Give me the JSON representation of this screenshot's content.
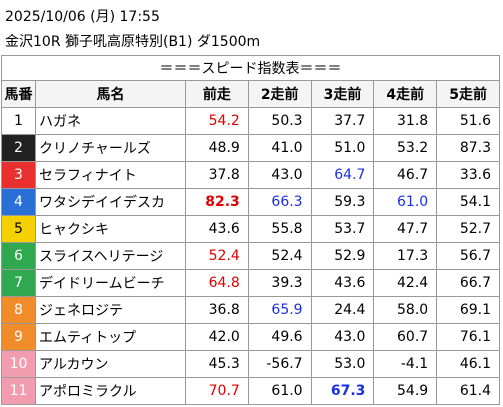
{
  "header": {
    "line1": "2025/10/06 (月) 17:55",
    "line2": "金沢10R 獅子吼高原特別(B1) ダ1500m"
  },
  "table": {
    "title": "＝＝＝スピード指数表＝＝＝",
    "columns": [
      "馬番",
      "馬名",
      "前走",
      "2走前",
      "3走前",
      "4走前",
      "5走前"
    ],
    "frame_colors": [
      {
        "bg": "#ffffff",
        "fg": "#000000"
      },
      {
        "bg": "#222222",
        "fg": "#ffffff"
      },
      {
        "bg": "#e8312f",
        "fg": "#ffffff"
      },
      {
        "bg": "#2a6fd6",
        "fg": "#ffffff"
      },
      {
        "bg": "#f5d000",
        "fg": "#000000"
      },
      {
        "bg": "#2fa84f",
        "fg": "#ffffff"
      },
      {
        "bg": "#2fa84f",
        "fg": "#ffffff"
      },
      {
        "bg": "#f08c2a",
        "fg": "#ffffff"
      },
      {
        "bg": "#f08c2a",
        "fg": "#ffffff"
      },
      {
        "bg": "#f29cb0",
        "fg": "#ffffff"
      },
      {
        "bg": "#f29cb0",
        "fg": "#ffffff"
      }
    ],
    "rows": [
      {
        "num": "1",
        "name": "ハガネ",
        "values": [
          "54.2",
          "50.3",
          "37.7",
          "31.8",
          "51.6"
        ],
        "styles": [
          "red",
          "normal",
          "normal",
          "normal",
          "normal"
        ]
      },
      {
        "num": "2",
        "name": "クリノチャールズ",
        "values": [
          "48.9",
          "41.0",
          "51.0",
          "53.2",
          "87.3"
        ],
        "styles": [
          "normal",
          "normal",
          "normal",
          "normal",
          "normal"
        ]
      },
      {
        "num": "3",
        "name": "セラフィナイト",
        "values": [
          "37.8",
          "43.0",
          "64.7",
          "46.7",
          "33.6"
        ],
        "styles": [
          "normal",
          "normal",
          "blue",
          "normal",
          "normal"
        ]
      },
      {
        "num": "4",
        "name": "ワタシデイイデスカ",
        "values": [
          "82.3",
          "66.3",
          "59.3",
          "61.0",
          "54.1"
        ],
        "styles": [
          "red-bold",
          "blue",
          "normal",
          "blue",
          "normal"
        ]
      },
      {
        "num": "5",
        "name": "ヒャクシキ",
        "values": [
          "43.6",
          "55.8",
          "53.7",
          "47.7",
          "52.7"
        ],
        "styles": [
          "normal",
          "normal",
          "normal",
          "normal",
          "normal"
        ]
      },
      {
        "num": "6",
        "name": "スライスヘリテージ",
        "values": [
          "52.4",
          "52.4",
          "52.9",
          "17.3",
          "56.7"
        ],
        "styles": [
          "red",
          "normal",
          "normal",
          "normal",
          "normal"
        ]
      },
      {
        "num": "7",
        "name": "デイドリームビーチ",
        "values": [
          "64.8",
          "39.3",
          "43.6",
          "42.4",
          "66.7"
        ],
        "styles": [
          "red",
          "normal",
          "normal",
          "normal",
          "normal"
        ]
      },
      {
        "num": "8",
        "name": "ジェネロジテ",
        "values": [
          "36.8",
          "65.9",
          "24.4",
          "58.0",
          "69.1"
        ],
        "styles": [
          "normal",
          "blue",
          "normal",
          "normal",
          "normal"
        ]
      },
      {
        "num": "9",
        "name": "エムティトップ",
        "values": [
          "42.0",
          "49.6",
          "43.0",
          "60.7",
          "76.1"
        ],
        "styles": [
          "normal",
          "normal",
          "normal",
          "normal",
          "normal"
        ]
      },
      {
        "num": "10",
        "name": "アルカウン",
        "values": [
          "45.3",
          "-56.7",
          "53.0",
          "-4.1",
          "46.1"
        ],
        "styles": [
          "normal",
          "normal",
          "normal",
          "normal",
          "normal"
        ]
      },
      {
        "num": "11",
        "name": "アポロミラクル",
        "values": [
          "70.7",
          "61.0",
          "67.3",
          "54.9",
          "61.4"
        ],
        "styles": [
          "red",
          "normal",
          "blue-bold",
          "normal",
          "normal"
        ]
      }
    ]
  }
}
